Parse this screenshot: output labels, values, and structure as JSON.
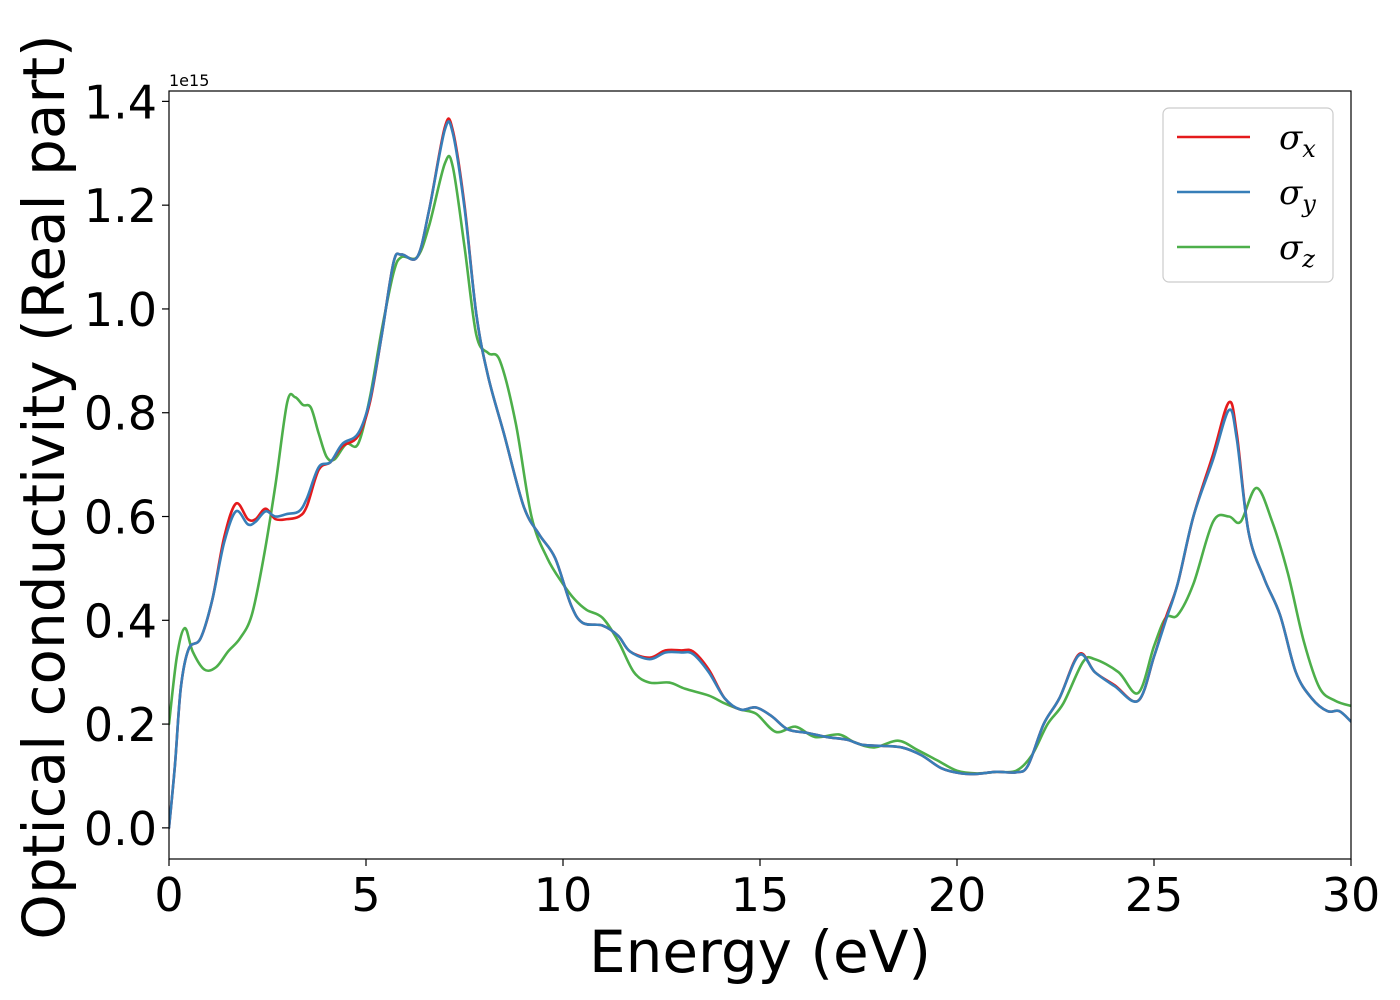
{
  "chart_data": {
    "type": "line",
    "xlabel": "Energy (eV)",
    "ylabel": "Optical conductivity (Real part)",
    "y_offset_text": "1e15",
    "xlim": [
      0,
      30
    ],
    "ylim": [
      -0.06,
      1.42
    ],
    "x_ticks": [
      0,
      5,
      10,
      15,
      20,
      25,
      30
    ],
    "x_tick_labels": [
      "0",
      "5",
      "10",
      "15",
      "20",
      "25",
      "30"
    ],
    "y_ticks": [
      0.0,
      0.2,
      0.4,
      0.6,
      0.8,
      1.0,
      1.2,
      1.4
    ],
    "y_tick_labels": [
      "0.0",
      "0.2",
      "0.4",
      "0.6",
      "0.8",
      "1.0",
      "1.2",
      "1.4"
    ],
    "grid": false,
    "legend_position": "top-right",
    "series": [
      {
        "name": "σx",
        "legend_symbol": "σ",
        "legend_subscript": "x",
        "color": "#e41a1c",
        "points": [
          [
            0,
            0
          ],
          [
            0.15,
            0.12
          ],
          [
            0.3,
            0.27
          ],
          [
            0.5,
            0.345
          ],
          [
            0.8,
            0.365
          ],
          [
            1.1,
            0.44
          ],
          [
            1.4,
            0.56
          ],
          [
            1.7,
            0.625
          ],
          [
            2.0,
            0.595
          ],
          [
            2.2,
            0.595
          ],
          [
            2.45,
            0.615
          ],
          [
            2.7,
            0.595
          ],
          [
            3.0,
            0.595
          ],
          [
            3.3,
            0.6
          ],
          [
            3.5,
            0.62
          ],
          [
            3.8,
            0.69
          ],
          [
            4.1,
            0.705
          ],
          [
            4.4,
            0.735
          ],
          [
            4.8,
            0.755
          ],
          [
            5.1,
            0.82
          ],
          [
            5.4,
            0.95
          ],
          [
            5.7,
            1.09
          ],
          [
            5.9,
            1.105
          ],
          [
            6.3,
            1.1
          ],
          [
            6.6,
            1.19
          ],
          [
            7.0,
            1.35
          ],
          [
            7.2,
            1.345
          ],
          [
            7.5,
            1.2
          ],
          [
            7.8,
            0.99
          ],
          [
            8.1,
            0.87
          ],
          [
            8.5,
            0.76
          ],
          [
            9.0,
            0.62
          ],
          [
            9.4,
            0.565
          ],
          [
            9.8,
            0.52
          ],
          [
            10.2,
            0.43
          ],
          [
            10.5,
            0.395
          ],
          [
            11.0,
            0.39
          ],
          [
            11.4,
            0.37
          ],
          [
            11.7,
            0.34
          ],
          [
            12.2,
            0.328
          ],
          [
            12.6,
            0.342
          ],
          [
            13.0,
            0.342
          ],
          [
            13.3,
            0.34
          ],
          [
            13.7,
            0.305
          ],
          [
            14.1,
            0.25
          ],
          [
            14.5,
            0.228
          ],
          [
            14.9,
            0.232
          ],
          [
            15.3,
            0.215
          ],
          [
            15.7,
            0.19
          ],
          [
            16.2,
            0.183
          ],
          [
            16.7,
            0.175
          ],
          [
            17.2,
            0.17
          ],
          [
            17.6,
            0.16
          ],
          [
            18.1,
            0.158
          ],
          [
            18.6,
            0.155
          ],
          [
            19.1,
            0.14
          ],
          [
            19.6,
            0.115
          ],
          [
            20.1,
            0.105
          ],
          [
            20.5,
            0.104
          ],
          [
            21.0,
            0.108
          ],
          [
            21.5,
            0.107
          ],
          [
            21.8,
            0.12
          ],
          [
            22.2,
            0.2
          ],
          [
            22.6,
            0.25
          ],
          [
            23.1,
            0.335
          ],
          [
            23.5,
            0.3
          ],
          [
            24.0,
            0.275
          ],
          [
            24.6,
            0.245
          ],
          [
            25.0,
            0.33
          ],
          [
            25.3,
            0.405
          ],
          [
            25.6,
            0.47
          ],
          [
            26.0,
            0.6
          ],
          [
            26.5,
            0.72
          ],
          [
            26.9,
            0.82
          ],
          [
            27.1,
            0.76
          ],
          [
            27.4,
            0.57
          ],
          [
            27.8,
            0.48
          ],
          [
            28.2,
            0.41
          ],
          [
            28.6,
            0.3
          ],
          [
            29.0,
            0.25
          ],
          [
            29.4,
            0.225
          ],
          [
            29.7,
            0.225
          ],
          [
            30.0,
            0.205
          ]
        ]
      },
      {
        "name": "σy",
        "legend_symbol": "σ",
        "legend_subscript": "y",
        "color": "#377eb8",
        "points": [
          [
            0,
            0
          ],
          [
            0.15,
            0.12
          ],
          [
            0.3,
            0.27
          ],
          [
            0.5,
            0.345
          ],
          [
            0.8,
            0.365
          ],
          [
            1.1,
            0.44
          ],
          [
            1.4,
            0.55
          ],
          [
            1.7,
            0.61
          ],
          [
            2.0,
            0.585
          ],
          [
            2.2,
            0.59
          ],
          [
            2.45,
            0.61
          ],
          [
            2.7,
            0.6
          ],
          [
            3.0,
            0.605
          ],
          [
            3.3,
            0.61
          ],
          [
            3.5,
            0.635
          ],
          [
            3.8,
            0.695
          ],
          [
            4.1,
            0.705
          ],
          [
            4.4,
            0.74
          ],
          [
            4.8,
            0.76
          ],
          [
            5.1,
            0.825
          ],
          [
            5.4,
            0.95
          ],
          [
            5.7,
            1.09
          ],
          [
            5.9,
            1.105
          ],
          [
            6.3,
            1.1
          ],
          [
            6.6,
            1.19
          ],
          [
            7.0,
            1.345
          ],
          [
            7.2,
            1.34
          ],
          [
            7.5,
            1.195
          ],
          [
            7.8,
            0.99
          ],
          [
            8.1,
            0.87
          ],
          [
            8.5,
            0.76
          ],
          [
            9.0,
            0.62
          ],
          [
            9.4,
            0.565
          ],
          [
            9.8,
            0.52
          ],
          [
            10.2,
            0.43
          ],
          [
            10.5,
            0.395
          ],
          [
            11.0,
            0.39
          ],
          [
            11.4,
            0.37
          ],
          [
            11.7,
            0.34
          ],
          [
            12.2,
            0.325
          ],
          [
            12.6,
            0.338
          ],
          [
            13.0,
            0.338
          ],
          [
            13.3,
            0.335
          ],
          [
            13.7,
            0.3
          ],
          [
            14.1,
            0.25
          ],
          [
            14.5,
            0.228
          ],
          [
            14.9,
            0.232
          ],
          [
            15.3,
            0.215
          ],
          [
            15.7,
            0.19
          ],
          [
            16.2,
            0.183
          ],
          [
            16.7,
            0.175
          ],
          [
            17.2,
            0.17
          ],
          [
            17.6,
            0.16
          ],
          [
            18.1,
            0.158
          ],
          [
            18.6,
            0.155
          ],
          [
            19.1,
            0.14
          ],
          [
            19.6,
            0.115
          ],
          [
            20.1,
            0.105
          ],
          [
            20.5,
            0.104
          ],
          [
            21.0,
            0.108
          ],
          [
            21.5,
            0.107
          ],
          [
            21.8,
            0.12
          ],
          [
            22.2,
            0.2
          ],
          [
            22.6,
            0.25
          ],
          [
            23.1,
            0.333
          ],
          [
            23.5,
            0.3
          ],
          [
            24.0,
            0.273
          ],
          [
            24.6,
            0.245
          ],
          [
            25.0,
            0.33
          ],
          [
            25.3,
            0.4
          ],
          [
            25.6,
            0.47
          ],
          [
            26.0,
            0.6
          ],
          [
            26.5,
            0.71
          ],
          [
            26.9,
            0.805
          ],
          [
            27.1,
            0.75
          ],
          [
            27.4,
            0.57
          ],
          [
            27.8,
            0.48
          ],
          [
            28.2,
            0.41
          ],
          [
            28.6,
            0.3
          ],
          [
            29.0,
            0.25
          ],
          [
            29.4,
            0.225
          ],
          [
            29.7,
            0.225
          ],
          [
            30.0,
            0.205
          ]
        ]
      },
      {
        "name": "σz",
        "legend_symbol": "σ",
        "legend_subscript": "z",
        "color": "#4daf4a",
        "points": [
          [
            0,
            0.2
          ],
          [
            0.2,
            0.33
          ],
          [
            0.4,
            0.385
          ],
          [
            0.6,
            0.34
          ],
          [
            0.9,
            0.305
          ],
          [
            1.2,
            0.31
          ],
          [
            1.5,
            0.34
          ],
          [
            1.8,
            0.365
          ],
          [
            2.1,
            0.41
          ],
          [
            2.4,
            0.52
          ],
          [
            2.7,
            0.66
          ],
          [
            3.0,
            0.82
          ],
          [
            3.2,
            0.83
          ],
          [
            3.4,
            0.815
          ],
          [
            3.6,
            0.81
          ],
          [
            3.8,
            0.76
          ],
          [
            4.0,
            0.715
          ],
          [
            4.2,
            0.71
          ],
          [
            4.5,
            0.74
          ],
          [
            4.8,
            0.74
          ],
          [
            5.1,
            0.83
          ],
          [
            5.4,
            0.96
          ],
          [
            5.7,
            1.07
          ],
          [
            5.9,
            1.1
          ],
          [
            6.3,
            1.1
          ],
          [
            6.6,
            1.16
          ],
          [
            7.0,
            1.28
          ],
          [
            7.2,
            1.275
          ],
          [
            7.5,
            1.12
          ],
          [
            7.8,
            0.95
          ],
          [
            8.1,
            0.915
          ],
          [
            8.4,
            0.9
          ],
          [
            8.8,
            0.78
          ],
          [
            9.2,
            0.6
          ],
          [
            9.6,
            0.52
          ],
          [
            10.0,
            0.47
          ],
          [
            10.3,
            0.44
          ],
          [
            10.6,
            0.42
          ],
          [
            11.0,
            0.405
          ],
          [
            11.4,
            0.36
          ],
          [
            11.8,
            0.3
          ],
          [
            12.2,
            0.28
          ],
          [
            12.7,
            0.28
          ],
          [
            13.1,
            0.268
          ],
          [
            13.7,
            0.255
          ],
          [
            14.1,
            0.24
          ],
          [
            14.5,
            0.228
          ],
          [
            14.9,
            0.22
          ],
          [
            15.4,
            0.185
          ],
          [
            15.9,
            0.195
          ],
          [
            16.4,
            0.175
          ],
          [
            17.0,
            0.18
          ],
          [
            17.4,
            0.165
          ],
          [
            17.9,
            0.155
          ],
          [
            18.5,
            0.168
          ],
          [
            19.0,
            0.15
          ],
          [
            19.5,
            0.13
          ],
          [
            20.0,
            0.11
          ],
          [
            20.5,
            0.105
          ],
          [
            21.0,
            0.108
          ],
          [
            21.5,
            0.11
          ],
          [
            21.9,
            0.14
          ],
          [
            22.3,
            0.2
          ],
          [
            22.7,
            0.24
          ],
          [
            23.2,
            0.32
          ],
          [
            23.5,
            0.325
          ],
          [
            24.1,
            0.3
          ],
          [
            24.6,
            0.26
          ],
          [
            25.0,
            0.35
          ],
          [
            25.3,
            0.405
          ],
          [
            25.6,
            0.41
          ],
          [
            26.0,
            0.47
          ],
          [
            26.5,
            0.59
          ],
          [
            26.9,
            0.6
          ],
          [
            27.2,
            0.59
          ],
          [
            27.6,
            0.655
          ],
          [
            28.0,
            0.59
          ],
          [
            28.4,
            0.49
          ],
          [
            28.8,
            0.36
          ],
          [
            29.2,
            0.27
          ],
          [
            29.6,
            0.245
          ],
          [
            30.0,
            0.235
          ]
        ]
      }
    ]
  }
}
